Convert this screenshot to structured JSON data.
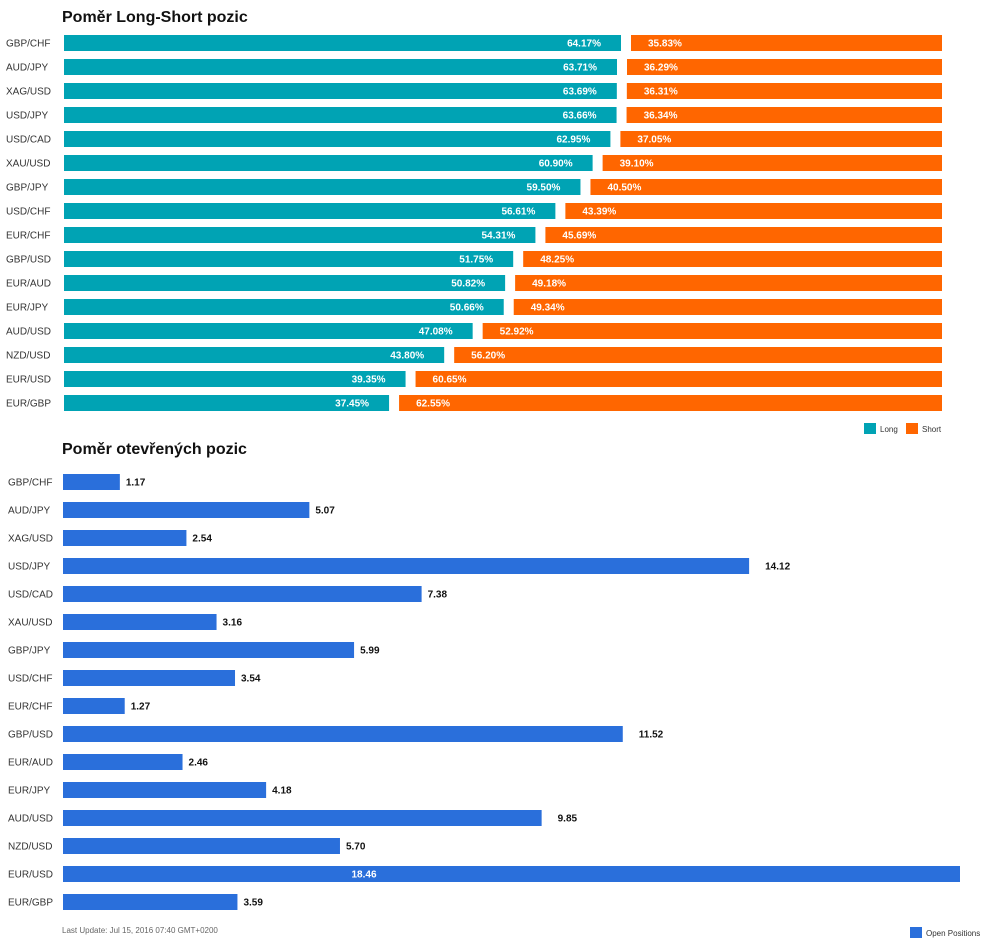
{
  "chart_data": [
    {
      "type": "bar",
      "orientation": "horizontal",
      "stacked": true,
      "title": "Poměr Long-Short pozic",
      "categories": [
        "GBP/CHF",
        "AUD/JPY",
        "XAG/USD",
        "USD/JPY",
        "USD/CAD",
        "XAU/USD",
        "GBP/JPY",
        "USD/CHF",
        "EUR/CHF",
        "GBP/USD",
        "EUR/AUD",
        "EUR/JPY",
        "AUD/USD",
        "NZD/USD",
        "EUR/USD",
        "EUR/GBP"
      ],
      "series": [
        {
          "name": "Long",
          "color": "#00a3b4",
          "values": [
            64.17,
            63.71,
            63.69,
            63.66,
            62.95,
            60.9,
            59.5,
            56.61,
            54.31,
            51.75,
            50.82,
            50.66,
            47.08,
            43.8,
            39.35,
            37.45
          ]
        },
        {
          "name": "Short",
          "color": "#ff6600",
          "values": [
            35.83,
            36.29,
            36.31,
            36.34,
            37.05,
            39.1,
            40.5,
            43.39,
            45.69,
            48.25,
            49.18,
            49.34,
            52.92,
            56.2,
            60.65,
            62.55
          ]
        }
      ],
      "value_suffix": "%",
      "legend_position": "bottom-right",
      "grid": false
    },
    {
      "type": "bar",
      "orientation": "horizontal",
      "title": "Poměr otevřených pozic",
      "categories": [
        "GBP/CHF",
        "AUD/JPY",
        "XAG/USD",
        "USD/JPY",
        "USD/CAD",
        "XAU/USD",
        "GBP/JPY",
        "USD/CHF",
        "EUR/CHF",
        "GBP/USD",
        "EUR/AUD",
        "EUR/JPY",
        "AUD/USD",
        "NZD/USD",
        "EUR/USD",
        "EUR/GBP"
      ],
      "series": [
        {
          "name": "Open Positions",
          "color": "#2a6fdb",
          "values": [
            1.17,
            5.07,
            2.54,
            14.12,
            7.38,
            3.16,
            5.99,
            3.54,
            1.27,
            11.52,
            2.46,
            4.18,
            9.85,
            5.7,
            18.46,
            3.59
          ]
        }
      ],
      "xlim": [
        0,
        18.46
      ],
      "legend_position": "bottom-right",
      "grid": false
    }
  ],
  "footer": {
    "last_update": "Last Update: Jul 15, 2016 07:40 GMT+0200"
  }
}
